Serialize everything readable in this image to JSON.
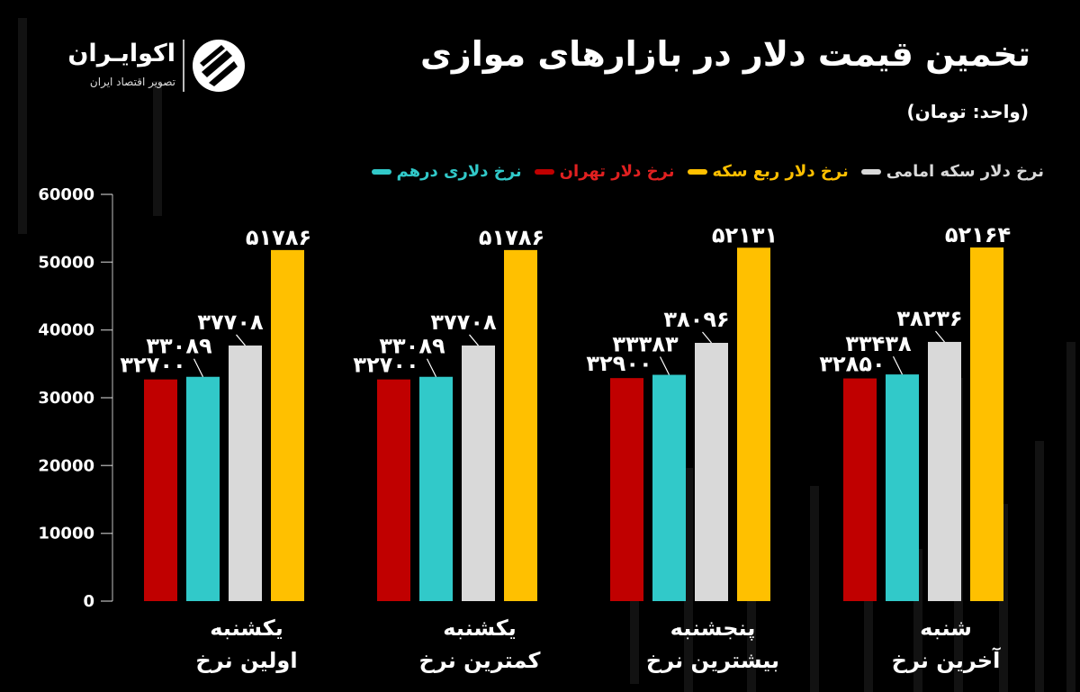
{
  "header": {
    "title": "تخمین قیمت دلار در بازارهای موازی",
    "unit": "(واحد: تومان)"
  },
  "logo": {
    "name": "اکوایـران",
    "subtitle": "تصویر اقتصاد ایران",
    "icon": "ekoiran-logo-mark"
  },
  "colors": {
    "tehran": "#c00000",
    "dirham": "#31c9c9",
    "emami": "#d9d9d9",
    "rob": "#ffc000"
  },
  "chart_data": {
    "type": "bar",
    "title": "تخمین قیمت دلار در بازارهای موازی",
    "ylim": [
      0,
      60000
    ],
    "yticks": [
      "0",
      "10000",
      "20000",
      "30000",
      "40000",
      "50000",
      "60000"
    ],
    "grid": false,
    "legend_position": "top",
    "categories": [
      [
        "یکشنبه",
        "اولین نرخ"
      ],
      [
        "یکشنبه",
        "کمترین  نرخ"
      ],
      [
        "پنجشنبه",
        "بیشترین نرخ"
      ],
      [
        "شنبه",
        "آخرین نرخ"
      ]
    ],
    "series": [
      {
        "name": "نرخ دلار تهران",
        "color": "#c00000",
        "values": [
          32700,
          32700,
          32900,
          32850
        ],
        "labels": [
          "۳۲۷۰۰",
          "۳۲۷۰۰",
          "۳۲۹۰۰",
          "۳۲۸۵۰"
        ]
      },
      {
        "name": "نرخ دلاری درهم",
        "color": "#31c9c9",
        "values": [
          33089,
          33089,
          33383,
          33438
        ],
        "labels": [
          "۳۳۰۸۹",
          "۳۳۰۸۹",
          "۳۳۳۸۳",
          "۳۳۴۳۸"
        ]
      },
      {
        "name": "نرخ دلار سکه امامی",
        "color": "#d9d9d9",
        "values": [
          37708,
          37708,
          38096,
          38236
        ],
        "labels": [
          "۳۷۷۰۸",
          "۳۷۷۰۸",
          "۳۸۰۹۶",
          "۳۸۲۳۶"
        ]
      },
      {
        "name": "نرخ دلار ربع سکه",
        "color": "#ffc000",
        "values": [
          51786,
          51786,
          52131,
          52164
        ],
        "labels": [
          "۵۱۷۸۶",
          "۵۱۷۸۶",
          "۵۲۱۳۱",
          "۵۲۱۶۴"
        ]
      }
    ],
    "legend_order": [
      1,
      0,
      3,
      2
    ]
  }
}
